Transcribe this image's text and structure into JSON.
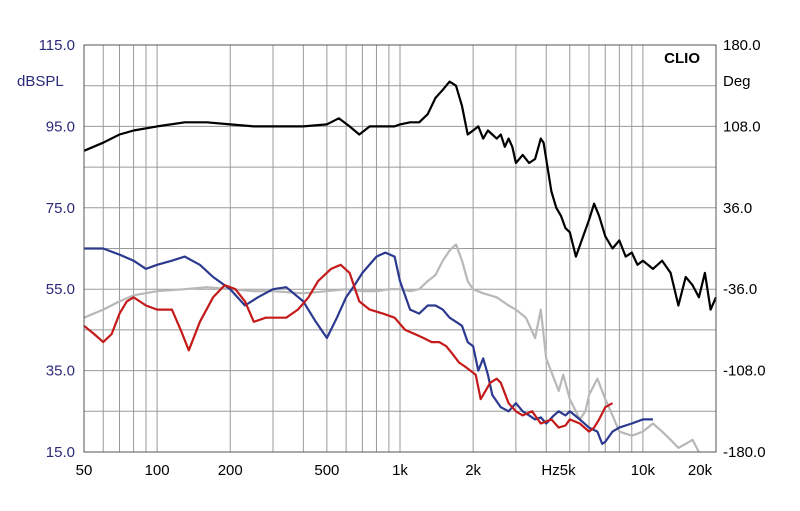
{
  "chart_data": {
    "type": "line",
    "brand": "CLIO",
    "ylabel_left": "dBSPL",
    "ylabel_right": "Deg",
    "xlabel": "Hz",
    "x_scale": "log",
    "xlim": [
      50,
      20000
    ],
    "ylim_left": [
      15,
      115
    ],
    "ylim_right": [
      -180,
      180
    ],
    "left_ticks": [
      "115.0",
      "95.0",
      "75.0",
      "55.0",
      "35.0",
      "15.0"
    ],
    "left_tick_values": [
      115,
      95,
      75,
      55,
      35,
      15
    ],
    "right_ticks": [
      "180.0",
      "108.0",
      "36.0",
      "-36.0",
      "-108.0",
      "-180.0"
    ],
    "x_ticks": [
      {
        "value": 50,
        "label": "50"
      },
      {
        "value": 100,
        "label": "100"
      },
      {
        "value": 200,
        "label": "200"
      },
      {
        "value": 500,
        "label": "500"
      },
      {
        "value": 1000,
        "label": "1k"
      },
      {
        "value": 2000,
        "label": "2k"
      },
      {
        "value": 5000,
        "label": "5k"
      },
      {
        "value": 10000,
        "label": "10k"
      },
      {
        "value": 20000,
        "label": "20k"
      }
    ],
    "grid": true,
    "series": [
      {
        "color": "#b8b8b8",
        "points": [
          [
            50,
            48
          ],
          [
            60,
            50
          ],
          [
            70,
            52
          ],
          [
            80,
            53.5
          ],
          [
            100,
            54.5
          ],
          [
            130,
            55
          ],
          [
            160,
            55.5
          ],
          [
            200,
            55
          ],
          [
            250,
            54.5
          ],
          [
            300,
            54.5
          ],
          [
            400,
            54
          ],
          [
            500,
            54.5
          ],
          [
            600,
            55
          ],
          [
            700,
            54.5
          ],
          [
            800,
            54.5
          ],
          [
            900,
            55
          ],
          [
            1000,
            55
          ],
          [
            1100,
            54.5
          ],
          [
            1200,
            55
          ],
          [
            1300,
            57
          ],
          [
            1400,
            58.5
          ],
          [
            1500,
            62
          ],
          [
            1600,
            64.5
          ],
          [
            1700,
            66
          ],
          [
            1800,
            62
          ],
          [
            1900,
            57
          ],
          [
            2000,
            55
          ],
          [
            2200,
            54
          ],
          [
            2500,
            53
          ],
          [
            2800,
            51
          ],
          [
            3000,
            50
          ],
          [
            3300,
            48
          ],
          [
            3600,
            43
          ],
          [
            3800,
            50
          ],
          [
            4000,
            38
          ],
          [
            4500,
            30
          ],
          [
            4700,
            34
          ],
          [
            5000,
            28
          ],
          [
            5500,
            23
          ],
          [
            5800,
            25
          ],
          [
            6000,
            29
          ],
          [
            6500,
            33
          ],
          [
            7000,
            28
          ],
          [
            7500,
            24
          ],
          [
            8000,
            20
          ],
          [
            9000,
            19
          ],
          [
            10000,
            20
          ],
          [
            11000,
            22
          ],
          [
            12000,
            20
          ],
          [
            13000,
            18
          ],
          [
            14000,
            16
          ],
          [
            15000,
            17
          ],
          [
            16000,
            18
          ],
          [
            17000,
            15
          ]
        ]
      },
      {
        "color": "#000000",
        "points": [
          [
            50,
            89
          ],
          [
            60,
            91
          ],
          [
            70,
            93
          ],
          [
            80,
            94
          ],
          [
            100,
            95
          ],
          [
            130,
            96
          ],
          [
            160,
            96
          ],
          [
            200,
            95.5
          ],
          [
            250,
            95
          ],
          [
            300,
            95
          ],
          [
            400,
            95
          ],
          [
            500,
            95.5
          ],
          [
            560,
            97
          ],
          [
            620,
            95
          ],
          [
            680,
            93
          ],
          [
            750,
            95
          ],
          [
            850,
            95
          ],
          [
            950,
            95
          ],
          [
            1000,
            95.5
          ],
          [
            1100,
            96
          ],
          [
            1200,
            96
          ],
          [
            1300,
            98
          ],
          [
            1400,
            102
          ],
          [
            1500,
            104
          ],
          [
            1600,
            106
          ],
          [
            1700,
            105
          ],
          [
            1800,
            100
          ],
          [
            1900,
            93
          ],
          [
            2000,
            94
          ],
          [
            2100,
            95
          ],
          [
            2200,
            92
          ],
          [
            2300,
            94
          ],
          [
            2400,
            93
          ],
          [
            2500,
            92
          ],
          [
            2600,
            93
          ],
          [
            2700,
            90
          ],
          [
            2800,
            92
          ],
          [
            2900,
            90
          ],
          [
            3000,
            86
          ],
          [
            3200,
            88
          ],
          [
            3400,
            86
          ],
          [
            3600,
            87
          ],
          [
            3800,
            92
          ],
          [
            3900,
            91
          ],
          [
            4000,
            87
          ],
          [
            4200,
            79
          ],
          [
            4400,
            75
          ],
          [
            4600,
            73
          ],
          [
            4800,
            70
          ],
          [
            5000,
            69
          ],
          [
            5300,
            63
          ],
          [
            5600,
            67
          ],
          [
            6000,
            72
          ],
          [
            6300,
            76
          ],
          [
            6600,
            73
          ],
          [
            7000,
            68
          ],
          [
            7500,
            65
          ],
          [
            8000,
            67
          ],
          [
            8500,
            63
          ],
          [
            9000,
            64
          ],
          [
            9500,
            61
          ],
          [
            10000,
            62
          ],
          [
            11000,
            60
          ],
          [
            12000,
            62
          ],
          [
            13000,
            59
          ],
          [
            14000,
            51
          ],
          [
            15000,
            58
          ],
          [
            16000,
            56
          ],
          [
            17000,
            53
          ],
          [
            18000,
            59
          ],
          [
            19000,
            50
          ],
          [
            20000,
            53
          ]
        ]
      },
      {
        "color": "#2b3a8f",
        "points": [
          [
            50,
            65
          ],
          [
            60,
            65
          ],
          [
            70,
            63.5
          ],
          [
            80,
            62
          ],
          [
            90,
            60
          ],
          [
            100,
            61
          ],
          [
            115,
            62
          ],
          [
            130,
            63
          ],
          [
            150,
            61
          ],
          [
            170,
            58
          ],
          [
            200,
            55
          ],
          [
            230,
            51
          ],
          [
            260,
            53
          ],
          [
            300,
            55
          ],
          [
            340,
            55.5
          ],
          [
            400,
            52
          ],
          [
            450,
            47
          ],
          [
            500,
            43
          ],
          [
            550,
            48
          ],
          [
            600,
            53
          ],
          [
            650,
            56
          ],
          [
            700,
            59
          ],
          [
            800,
            63
          ],
          [
            870,
            64
          ],
          [
            950,
            63
          ],
          [
            1000,
            57
          ],
          [
            1100,
            50
          ],
          [
            1200,
            49
          ],
          [
            1300,
            51
          ],
          [
            1400,
            51
          ],
          [
            1500,
            50
          ],
          [
            1600,
            48
          ],
          [
            1700,
            47
          ],
          [
            1800,
            46
          ],
          [
            1900,
            42
          ],
          [
            2000,
            41
          ],
          [
            2100,
            35
          ],
          [
            2200,
            38
          ],
          [
            2300,
            34
          ],
          [
            2400,
            29
          ],
          [
            2600,
            26
          ],
          [
            2800,
            25
          ],
          [
            3000,
            27
          ],
          [
            3200,
            25
          ],
          [
            3400,
            24
          ],
          [
            3600,
            23
          ],
          [
            3800,
            23.5
          ],
          [
            4000,
            22
          ],
          [
            4300,
            24
          ],
          [
            4500,
            25
          ],
          [
            4800,
            24
          ],
          [
            5000,
            25
          ],
          [
            5500,
            23
          ],
          [
            6000,
            21
          ],
          [
            6500,
            20
          ],
          [
            6800,
            17
          ],
          [
            7000,
            17.5
          ],
          [
            7500,
            20
          ],
          [
            8000,
            21
          ],
          [
            9000,
            22
          ],
          [
            10000,
            23
          ],
          [
            11000,
            23
          ]
        ]
      },
      {
        "color": "#c41a1a",
        "points": [
          [
            50,
            46
          ],
          [
            55,
            44
          ],
          [
            60,
            42
          ],
          [
            65,
            44
          ],
          [
            70,
            49
          ],
          [
            75,
            52
          ],
          [
            80,
            53
          ],
          [
            90,
            51
          ],
          [
            100,
            50
          ],
          [
            115,
            50
          ],
          [
            125,
            45
          ],
          [
            135,
            40
          ],
          [
            150,
            47
          ],
          [
            170,
            53
          ],
          [
            190,
            56
          ],
          [
            210,
            55
          ],
          [
            230,
            52
          ],
          [
            250,
            47
          ],
          [
            280,
            48
          ],
          [
            300,
            48
          ],
          [
            340,
            48
          ],
          [
            380,
            50
          ],
          [
            420,
            53
          ],
          [
            460,
            57
          ],
          [
            520,
            60
          ],
          [
            570,
            61
          ],
          [
            620,
            59
          ],
          [
            680,
            52
          ],
          [
            750,
            50
          ],
          [
            850,
            49
          ],
          [
            950,
            48
          ],
          [
            1050,
            45
          ],
          [
            1150,
            44
          ],
          [
            1250,
            43
          ],
          [
            1350,
            42
          ],
          [
            1450,
            42
          ],
          [
            1550,
            41
          ],
          [
            1650,
            39
          ],
          [
            1750,
            37
          ],
          [
            1850,
            36
          ],
          [
            1950,
            35
          ],
          [
            2050,
            34
          ],
          [
            2150,
            28
          ],
          [
            2250,
            30
          ],
          [
            2350,
            32
          ],
          [
            2500,
            33
          ],
          [
            2600,
            32
          ],
          [
            2800,
            27
          ],
          [
            3000,
            25
          ],
          [
            3200,
            24
          ],
          [
            3500,
            25
          ],
          [
            3800,
            22
          ],
          [
            4200,
            23
          ],
          [
            4500,
            21
          ],
          [
            4800,
            21.5
          ],
          [
            5000,
            23
          ],
          [
            5500,
            22
          ],
          [
            6000,
            20
          ],
          [
            6300,
            21
          ],
          [
            6600,
            23
          ],
          [
            7000,
            26
          ],
          [
            7500,
            27
          ]
        ]
      }
    ]
  }
}
